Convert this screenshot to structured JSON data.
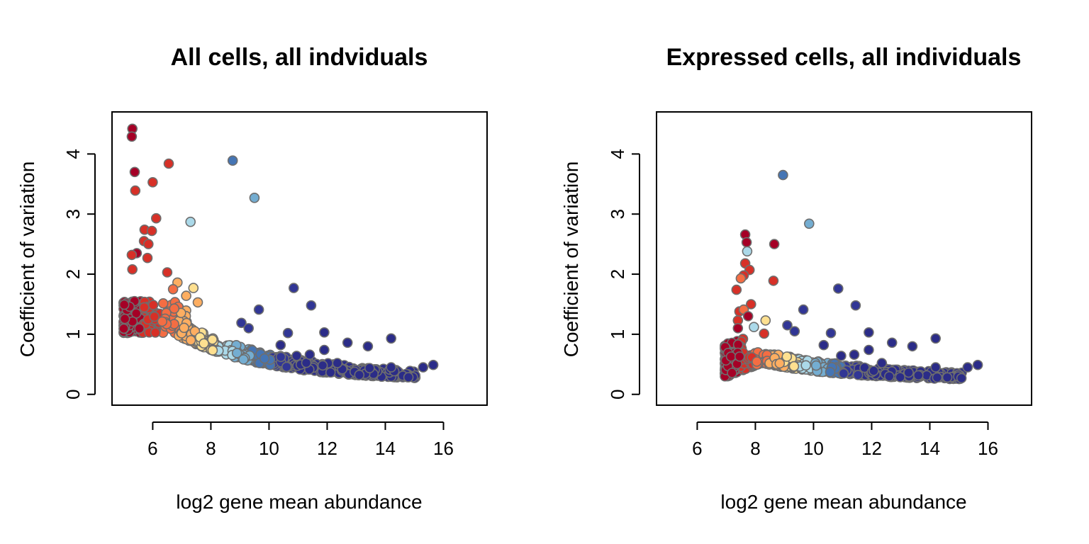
{
  "chart_data": [
    {
      "type": "scatter",
      "title": "All cells, all indviduals",
      "xlabel": "log2 gene mean abundance",
      "ylabel": "Coefficient of variation",
      "xlim": [
        4.6,
        17.5
      ],
      "ylim": [
        -0.18,
        4.7
      ],
      "xticks": [
        6,
        8,
        10,
        12,
        14,
        16
      ],
      "yticks": [
        0,
        1,
        2,
        3,
        4
      ],
      "grid": false,
      "legend": "none",
      "point_outline_color": "#6e6e6e",
      "color_scale": [
        "#a50026",
        "#d73027",
        "#f46d43",
        "#fdae61",
        "#fee090",
        "#abd9e9",
        "#74add1",
        "#4575b4",
        "#313695",
        "#2b2c88"
      ],
      "trend": {
        "floor_x": 5.9,
        "floor_y": 1.02,
        "x0": 5.0,
        "y0_low": 0.92,
        "y0_high": 1.62,
        "decay_from": 6.7,
        "asymptote": 0.22,
        "slope": 0.33,
        "x_max": 15.1
      },
      "outliers": [
        {
          "x": 5.3,
          "y": 4.42,
          "c": 0
        },
        {
          "x": 5.28,
          "y": 4.29,
          "c": 0
        },
        {
          "x": 5.38,
          "y": 3.7,
          "c": 0
        },
        {
          "x": 5.4,
          "y": 3.39,
          "c": 1
        },
        {
          "x": 6.55,
          "y": 3.84,
          "c": 1
        },
        {
          "x": 6.0,
          "y": 3.53,
          "c": 1
        },
        {
          "x": 6.12,
          "y": 2.93,
          "c": 1
        },
        {
          "x": 5.72,
          "y": 2.74,
          "c": 1
        },
        {
          "x": 5.97,
          "y": 2.72,
          "c": 1
        },
        {
          "x": 5.7,
          "y": 2.55,
          "c": 1
        },
        {
          "x": 5.85,
          "y": 2.5,
          "c": 1
        },
        {
          "x": 5.45,
          "y": 2.35,
          "c": 0
        },
        {
          "x": 5.28,
          "y": 2.32,
          "c": 1
        },
        {
          "x": 5.82,
          "y": 2.27,
          "c": 1
        },
        {
          "x": 5.3,
          "y": 2.08,
          "c": 1
        },
        {
          "x": 6.5,
          "y": 2.03,
          "c": 1
        },
        {
          "x": 6.85,
          "y": 1.86,
          "c": 3
        },
        {
          "x": 6.7,
          "y": 1.75,
          "c": 2
        },
        {
          "x": 7.4,
          "y": 1.77,
          "c": 4
        },
        {
          "x": 7.15,
          "y": 1.64,
          "c": 3
        },
        {
          "x": 7.55,
          "y": 1.53,
          "c": 3
        },
        {
          "x": 7.3,
          "y": 2.87,
          "c": 5
        },
        {
          "x": 8.75,
          "y": 3.89,
          "c": 7
        },
        {
          "x": 9.5,
          "y": 3.27,
          "c": 6
        },
        {
          "x": 10.85,
          "y": 1.77,
          "c": 8
        },
        {
          "x": 11.45,
          "y": 1.48,
          "c": 8
        },
        {
          "x": 9.65,
          "y": 1.41,
          "c": 8
        },
        {
          "x": 9.05,
          "y": 1.19,
          "c": 8
        },
        {
          "x": 9.3,
          "y": 1.1,
          "c": 8
        },
        {
          "x": 10.65,
          "y": 1.02,
          "c": 8
        },
        {
          "x": 11.9,
          "y": 1.03,
          "c": 9
        },
        {
          "x": 14.2,
          "y": 0.93,
          "c": 9
        },
        {
          "x": 12.7,
          "y": 0.86,
          "c": 9
        },
        {
          "x": 13.4,
          "y": 0.8,
          "c": 9
        },
        {
          "x": 10.4,
          "y": 0.82,
          "c": 9
        },
        {
          "x": 11.9,
          "y": 0.74,
          "c": 9
        },
        {
          "x": 10.95,
          "y": 0.64,
          "c": 9
        },
        {
          "x": 11.4,
          "y": 0.66,
          "c": 9
        },
        {
          "x": 15.65,
          "y": 0.49,
          "c": 9
        },
        {
          "x": 15.3,
          "y": 0.45,
          "c": 9
        },
        {
          "x": 14.2,
          "y": 0.45,
          "c": 9
        },
        {
          "x": 12.35,
          "y": 0.52,
          "c": 9
        }
      ]
    },
    {
      "type": "scatter",
      "title": "Expressed cells, all individuals",
      "xlabel": "log2 gene mean abundance",
      "ylabel": "Coefficient of variation",
      "xlim": [
        4.6,
        17.5
      ],
      "ylim": [
        -0.18,
        4.7
      ],
      "xticks": [
        6,
        8,
        10,
        12,
        14,
        16
      ],
      "yticks": [
        0,
        1,
        2,
        3,
        4
      ],
      "grid": false,
      "legend": "none",
      "point_outline_color": "#6e6e6e",
      "color_scale": [
        "#a50026",
        "#d73027",
        "#f46d43",
        "#fdae61",
        "#fee090",
        "#abd9e9",
        "#74add1",
        "#4575b4",
        "#313695",
        "#2b2c88"
      ],
      "trend": {
        "floor_x": 6.95,
        "floor_y": 0.28,
        "peak_x": 8.2,
        "peak_y": 0.52,
        "asymptote": 0.22,
        "slope": 0.33,
        "x_max": 15.1
      },
      "outliers": [
        {
          "x": 8.95,
          "y": 3.65,
          "c": 7
        },
        {
          "x": 9.85,
          "y": 2.84,
          "c": 6
        },
        {
          "x": 7.65,
          "y": 2.66,
          "c": 0
        },
        {
          "x": 7.7,
          "y": 2.53,
          "c": 0
        },
        {
          "x": 8.65,
          "y": 2.5,
          "c": 0
        },
        {
          "x": 7.72,
          "y": 2.38,
          "c": 5
        },
        {
          "x": 7.65,
          "y": 2.18,
          "c": 1
        },
        {
          "x": 7.8,
          "y": 2.07,
          "c": 1
        },
        {
          "x": 7.6,
          "y": 1.98,
          "c": 1
        },
        {
          "x": 7.5,
          "y": 1.93,
          "c": 2
        },
        {
          "x": 8.62,
          "y": 1.89,
          "c": 1
        },
        {
          "x": 7.35,
          "y": 1.74,
          "c": 1
        },
        {
          "x": 7.85,
          "y": 1.5,
          "c": 1
        },
        {
          "x": 7.45,
          "y": 1.38,
          "c": 1
        },
        {
          "x": 7.6,
          "y": 1.41,
          "c": 2
        },
        {
          "x": 8.35,
          "y": 1.23,
          "c": 4
        },
        {
          "x": 7.75,
          "y": 1.3,
          "c": 0
        },
        {
          "x": 7.4,
          "y": 1.23,
          "c": 1
        },
        {
          "x": 7.95,
          "y": 1.12,
          "c": 5
        },
        {
          "x": 8.3,
          "y": 1.01,
          "c": 1
        },
        {
          "x": 7.4,
          "y": 1.1,
          "c": 0
        },
        {
          "x": 10.85,
          "y": 1.76,
          "c": 8
        },
        {
          "x": 11.45,
          "y": 1.48,
          "c": 8
        },
        {
          "x": 9.65,
          "y": 1.41,
          "c": 8
        },
        {
          "x": 9.1,
          "y": 1.15,
          "c": 8
        },
        {
          "x": 9.35,
          "y": 1.05,
          "c": 8
        },
        {
          "x": 10.6,
          "y": 1.02,
          "c": 8
        },
        {
          "x": 11.9,
          "y": 1.03,
          "c": 9
        },
        {
          "x": 14.2,
          "y": 0.93,
          "c": 9
        },
        {
          "x": 12.7,
          "y": 0.86,
          "c": 9
        },
        {
          "x": 13.4,
          "y": 0.8,
          "c": 9
        },
        {
          "x": 10.35,
          "y": 0.82,
          "c": 9
        },
        {
          "x": 11.9,
          "y": 0.74,
          "c": 9
        },
        {
          "x": 10.95,
          "y": 0.64,
          "c": 9
        },
        {
          "x": 11.4,
          "y": 0.66,
          "c": 9
        },
        {
          "x": 15.65,
          "y": 0.49,
          "c": 9
        },
        {
          "x": 15.3,
          "y": 0.45,
          "c": 9
        },
        {
          "x": 14.2,
          "y": 0.45,
          "c": 9
        },
        {
          "x": 12.35,
          "y": 0.52,
          "c": 9
        }
      ]
    }
  ]
}
